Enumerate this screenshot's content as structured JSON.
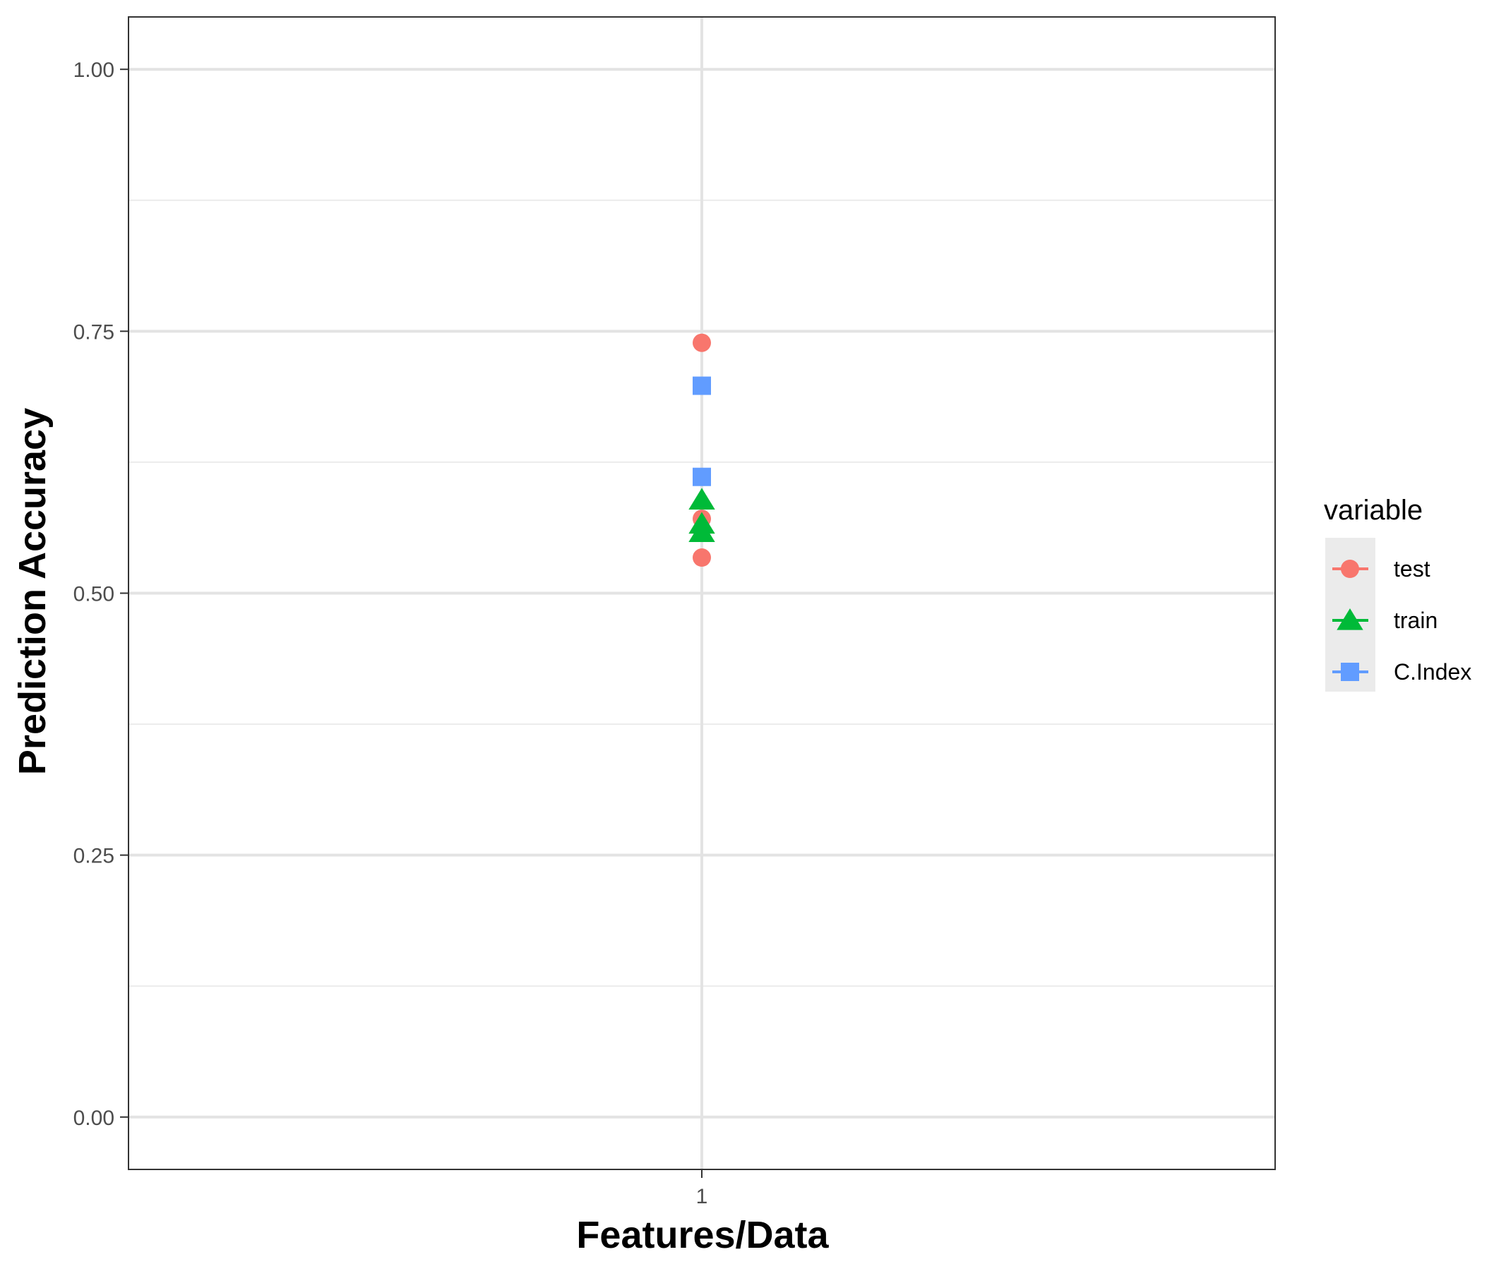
{
  "chart_data": {
    "type": "scatter",
    "title": "",
    "xlabel": "Features/Data",
    "ylabel": "Prediction Accuracy",
    "categories": [
      "1"
    ],
    "ylim": [
      -0.05,
      1.05
    ],
    "yticks": [
      "0.00",
      "0.25",
      "0.50",
      "0.75",
      "1.00"
    ],
    "grid": true,
    "legend": {
      "title": "variable",
      "position": "right"
    },
    "series": [
      {
        "name": "test",
        "shape": "circle",
        "color": "#F8766D",
        "x": [
          "1",
          "1",
          "1"
        ],
        "values": [
          0.739,
          0.571,
          0.534
        ]
      },
      {
        "name": "train",
        "shape": "triangle",
        "color": "#00BA38",
        "x": [
          "1",
          "1",
          "1"
        ],
        "values": [
          0.589,
          0.566,
          0.558
        ]
      },
      {
        "name": "C.Index",
        "shape": "square",
        "color": "#619CFF",
        "x": [
          "1",
          "1"
        ],
        "values": [
          0.698,
          0.611
        ]
      }
    ]
  }
}
